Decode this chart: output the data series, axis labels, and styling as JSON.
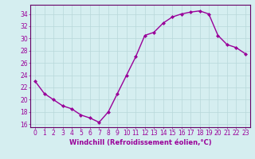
{
  "x": [
    0,
    1,
    2,
    3,
    4,
    5,
    6,
    7,
    8,
    9,
    10,
    11,
    12,
    13,
    14,
    15,
    16,
    17,
    18,
    19,
    20,
    21,
    22,
    23
  ],
  "y": [
    23,
    21,
    20,
    19,
    18.5,
    17.5,
    17,
    16.3,
    18,
    21,
    24,
    27,
    30.5,
    31,
    32.5,
    33.5,
    34,
    34.3,
    34.5,
    34,
    30.5,
    29,
    28.5,
    27.5
  ],
  "line_color": "#990099",
  "marker": "D",
  "markersize": 2,
  "linewidth": 1.0,
  "xlabel": "Windchill (Refroidissement éolien,°C)",
  "xlabel_fontsize": 6,
  "ylim": [
    15.5,
    35.5
  ],
  "yticks": [
    16,
    18,
    20,
    22,
    24,
    26,
    28,
    30,
    32,
    34
  ],
  "xticks": [
    0,
    1,
    2,
    3,
    4,
    5,
    6,
    7,
    8,
    9,
    10,
    11,
    12,
    13,
    14,
    15,
    16,
    17,
    18,
    19,
    20,
    21,
    22,
    23
  ],
  "xtick_labels": [
    "0",
    "1",
    "2",
    "3",
    "4",
    "5",
    "6",
    "7",
    "8",
    "9",
    "10",
    "11",
    "12",
    "13",
    "14",
    "15",
    "16",
    "17",
    "18",
    "19",
    "20",
    "21",
    "22",
    "23"
  ],
  "tick_fontsize": 5.5,
  "background_color": "#d5eef0",
  "grid_color": "#b8d8da",
  "axis_color": "#990099",
  "spine_color": "#660066"
}
